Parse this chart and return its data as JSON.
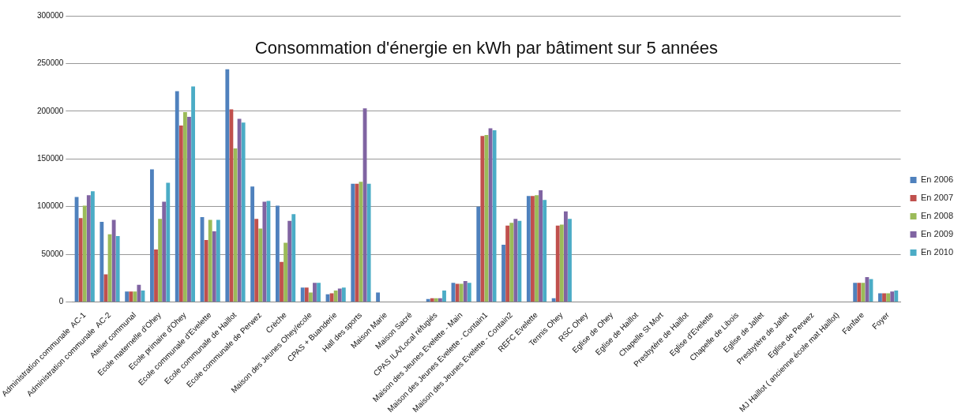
{
  "chart_data": {
    "type": "bar",
    "title": "Consommation d'énergie en kWh par bâtiment sur 5 années",
    "categories": [
      "Administration communale  AC-1",
      "Administration communale  AC-2",
      "Atelier communal",
      "Ecole maternelle d'Ohey",
      "Ecole primaire d'Ohey",
      "Ecole communale d'Evelette",
      "Ecole communale de Haillot",
      "Ecole communale de Perwez",
      "Crèche",
      "Maison des Jeunes Ohey/ecole",
      "CPAS + Buanderie",
      "Hall des sports",
      "Maison Marie",
      "Maison Sacré",
      "CPAS ILA/Local réfugiés",
      "Maison des Jeunes Evelette - Main",
      "Maison des Jeunes Evelette - Contain1",
      "Maison des Jeunes Evelette - Contain2",
      "REFC Evelette",
      "Tennis Ohey",
      "RSC Ohey",
      "Eglise de Ohey",
      "Eglise de Haillot",
      "Chapelle St Mort",
      "Presbytère de Haillot",
      "Eglise d'Evelette",
      "Chapelle de Libois",
      "Eglise de Jallet",
      "Presbytère de Jallet",
      "Eglise de Perwez",
      "MJ Haillot ( ancienne école mat Haillot)",
      "Fanfare",
      "Foyer"
    ],
    "series": [
      {
        "name": "En 2006",
        "color": "#4f81bd",
        "values": [
          110000,
          84000,
          11000,
          139000,
          221000,
          89000,
          244000,
          121000,
          101000,
          15000,
          8000,
          124000,
          10000,
          null,
          3000,
          20000,
          100000,
          60000,
          111000,
          4000,
          null,
          null,
          null,
          null,
          null,
          null,
          null,
          null,
          null,
          null,
          null,
          20000,
          9000
        ]
      },
      {
        "name": "En 2007",
        "color": "#c0504d",
        "values": [
          88000,
          29000,
          11000,
          55000,
          185000,
          65000,
          202000,
          87000,
          42000,
          15000,
          9000,
          124000,
          null,
          null,
          4000,
          19000,
          174000,
          80000,
          111000,
          80000,
          null,
          null,
          null,
          null,
          null,
          null,
          null,
          null,
          null,
          null,
          null,
          20000,
          9000
        ]
      },
      {
        "name": "En 2008",
        "color": "#9bbb59",
        "values": [
          101000,
          71000,
          11000,
          87000,
          199000,
          86000,
          161000,
          77000,
          62000,
          10000,
          12000,
          126000,
          null,
          null,
          4000,
          19000,
          175000,
          83000,
          112000,
          81000,
          null,
          null,
          null,
          null,
          null,
          null,
          null,
          null,
          null,
          null,
          null,
          20000,
          9000
        ]
      },
      {
        "name": "En 2009",
        "color": "#8064a2",
        "values": [
          112000,
          86000,
          18000,
          105000,
          194000,
          74000,
          192000,
          105000,
          85000,
          20000,
          14000,
          203000,
          null,
          null,
          4000,
          22000,
          182000,
          87000,
          117000,
          95000,
          null,
          null,
          null,
          null,
          null,
          null,
          null,
          null,
          null,
          null,
          null,
          26000,
          11000
        ]
      },
      {
        "name": "En 2010",
        "color": "#4bacc6",
        "values": [
          116000,
          69000,
          12000,
          125000,
          226000,
          86000,
          188000,
          106000,
          92000,
          20000,
          15000,
          124000,
          null,
          null,
          12000,
          20000,
          180000,
          85000,
          107000,
          87000,
          null,
          null,
          null,
          null,
          null,
          null,
          null,
          null,
          null,
          null,
          null,
          24000,
          12000
        ]
      }
    ],
    "ylim": [
      0,
      300000
    ],
    "yticks": [
      0,
      50000,
      100000,
      150000,
      200000,
      250000,
      300000
    ],
    "grid": "y",
    "legend": "right"
  }
}
